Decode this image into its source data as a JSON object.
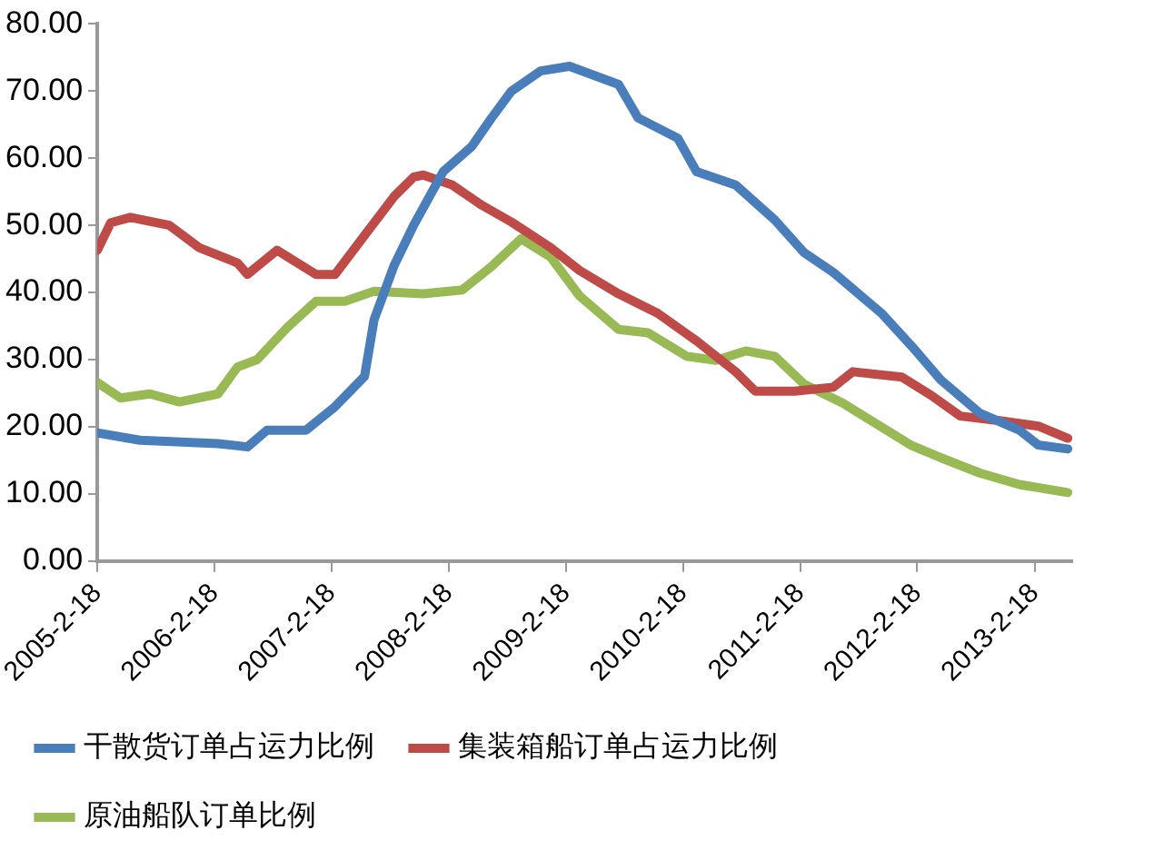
{
  "chart_data": {
    "type": "line",
    "xlim": [
      "2005-02-18",
      "2013-06-15"
    ],
    "xticks": [
      {
        "value": "2005-02-18",
        "label": "2005-2-18"
      },
      {
        "value": "2006-02-18",
        "label": "2006-2-18"
      },
      {
        "value": "2007-02-18",
        "label": "2007-2-18"
      },
      {
        "value": "2008-02-18",
        "label": "2008-2-18"
      },
      {
        "value": "2009-02-18",
        "label": "2009-2-18"
      },
      {
        "value": "2010-02-18",
        "label": "2010-2-18"
      },
      {
        "value": "2011-02-18",
        "label": "2011-2-18"
      },
      {
        "value": "2012-02-18",
        "label": "2012-2-18"
      },
      {
        "value": "2013-02-18",
        "label": "2013-2-18"
      }
    ],
    "ylim": [
      0,
      80
    ],
    "yticks": [
      {
        "value": 0,
        "label": "0.00"
      },
      {
        "value": 10,
        "label": "10.00"
      },
      {
        "value": 20,
        "label": "20.00"
      },
      {
        "value": 30,
        "label": "30.00"
      },
      {
        "value": 40,
        "label": "40.00"
      },
      {
        "value": 50,
        "label": "50.00"
      },
      {
        "value": 60,
        "label": "60.00"
      },
      {
        "value": 70,
        "label": "70.00"
      },
      {
        "value": 80,
        "label": "80.00"
      }
    ],
    "grid": false,
    "legend": "bottom",
    "marker": "none",
    "line_style": "solid",
    "series": [
      {
        "name": "干散货订单占运力比例",
        "color": "#4a7ebb",
        "x": [
          "2005-02-18",
          "2005-07",
          "2006-03",
          "2006-06",
          "2006-08",
          "2006-12",
          "2007-03",
          "2007-06",
          "2007-07",
          "2007-09",
          "2007-11",
          "2008-02",
          "2008-05",
          "2008-07",
          "2008-09",
          "2008-12",
          "2009-03",
          "2009-08",
          "2009-10",
          "2010-02",
          "2010-04",
          "2010-08",
          "2010-12",
          "2011-03",
          "2011-06",
          "2011-11",
          "2012-02",
          "2012-05",
          "2012-09",
          "2013-01",
          "2013-03",
          "2013-06"
        ],
        "values": [
          19.1,
          18,
          17.5,
          17,
          19.5,
          19.5,
          23,
          27.5,
          36,
          44,
          50,
          58,
          61.8,
          66,
          70,
          73,
          73.7,
          71,
          66,
          63,
          58,
          56,
          50.8,
          46,
          43,
          36.8,
          32,
          27,
          22,
          19.5,
          17.3,
          16.7
        ]
      },
      {
        "name": "集装箱船订单占运力比例",
        "color": "#be4b48",
        "x": [
          "2005-02-18",
          "2005-04",
          "2005-06",
          "2005-10",
          "2006-01",
          "2006-05",
          "2006-06",
          "2006-09",
          "2007-01",
          "2007-03",
          "2007-06",
          "2007-09",
          "2007-11",
          "2007-12",
          "2008-03",
          "2008-06",
          "2008-09",
          "2009-01",
          "2009-04",
          "2009-08",
          "2009-12",
          "2010-04",
          "2010-08",
          "2010-10",
          "2011-02",
          "2011-06",
          "2011-08",
          "2012-01",
          "2012-04",
          "2012-07",
          "2012-11",
          "2013-03",
          "2013-06"
        ],
        "values": [
          46.3,
          50.4,
          51.2,
          50,
          46.7,
          44.4,
          42.7,
          46.3,
          42.7,
          42.7,
          48.5,
          54.3,
          57.2,
          57.5,
          56,
          53,
          50.5,
          46.7,
          43.3,
          39.8,
          36.9,
          32.8,
          28.2,
          25.3,
          25.3,
          25.9,
          28.2,
          27.4,
          24.7,
          21.6,
          20.9,
          20.1,
          18.3
        ]
      },
      {
        "name": "原油船队订单比例",
        "color": "#98b954",
        "x": [
          "2005-02-18",
          "2005-05",
          "2005-08",
          "2005-11",
          "2006-03",
          "2006-05",
          "2006-07",
          "2006-10",
          "2007-01",
          "2007-04",
          "2007-07",
          "2007-12",
          "2008-04",
          "2008-07",
          "2008-10",
          "2009-01",
          "2009-04",
          "2009-08",
          "2009-11",
          "2010-03",
          "2010-06",
          "2010-09",
          "2010-12",
          "2011-03",
          "2011-07",
          "2012-02",
          "2012-05",
          "2012-09",
          "2013-01",
          "2013-06"
        ],
        "values": [
          26.6,
          24.3,
          24.9,
          23.7,
          24.9,
          28.9,
          30,
          34.7,
          38.7,
          38.7,
          40.2,
          39.8,
          40.4,
          43.9,
          48,
          45.3,
          39.5,
          34.5,
          34,
          30.5,
          29.9,
          31.3,
          30.5,
          26.4,
          23.5,
          17.2,
          15.4,
          13.1,
          11.4,
          10.2
        ]
      }
    ]
  }
}
